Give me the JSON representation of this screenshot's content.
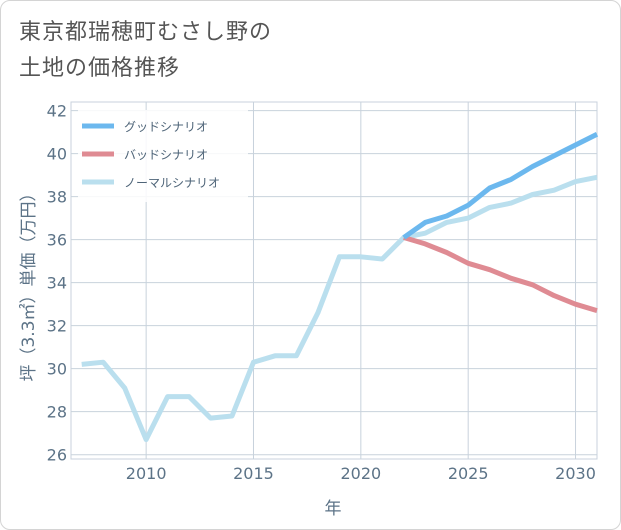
{
  "title_lines": [
    "東京都瑞穂町むさし野の",
    "土地の価格推移"
  ],
  "colors": {
    "good": "#6cb8ee",
    "bad": "#df8b93",
    "normal": "#badfee",
    "grid": "#c8d2dc",
    "axis_text": "#5c7387"
  },
  "chart_data": {
    "type": "line",
    "title": "東京都瑞穂町むさし野の土地の価格推移",
    "xlabel": "年",
    "ylabel": "坪（3.3㎡）単価（万円）",
    "xlim": [
      2006.5,
      2031
    ],
    "ylim": [
      25.8,
      42.4
    ],
    "x_ticks": [
      2010,
      2015,
      2020,
      2025,
      2030
    ],
    "y_ticks": [
      26,
      28,
      30,
      32,
      34,
      36,
      38,
      40,
      42
    ],
    "grid": true,
    "legend_position": "top-left",
    "legend": [
      "グッドシナリオ",
      "バッドシナリオ",
      "ノーマルシナリオ"
    ],
    "series": [
      {
        "name": "グッドシナリオ",
        "color_key": "good",
        "x": [
          2022,
          2023,
          2024,
          2025,
          2026,
          2027,
          2028,
          2029,
          2030,
          2031
        ],
        "y": [
          36.1,
          36.8,
          37.1,
          37.6,
          38.4,
          38.8,
          39.4,
          39.9,
          40.4,
          40.9
        ]
      },
      {
        "name": "バッドシナリオ",
        "color_key": "bad",
        "x": [
          2022,
          2023,
          2024,
          2025,
          2026,
          2027,
          2028,
          2029,
          2030,
          2031
        ],
        "y": [
          36.1,
          35.8,
          35.4,
          34.9,
          34.6,
          34.2,
          33.9,
          33.4,
          33.0,
          32.7
        ]
      },
      {
        "name": "ノーマルシナリオ",
        "color_key": "normal",
        "x": [
          2007,
          2008,
          2009,
          2010,
          2011,
          2012,
          2013,
          2014,
          2015,
          2016,
          2017,
          2018,
          2019,
          2020,
          2021,
          2022,
          2023,
          2024,
          2025,
          2026,
          2027,
          2028,
          2029,
          2030,
          2031
        ],
        "y": [
          30.2,
          30.3,
          29.1,
          26.7,
          28.7,
          28.7,
          27.7,
          27.8,
          30.3,
          30.6,
          30.6,
          32.6,
          35.2,
          35.2,
          35.1,
          36.1,
          36.3,
          36.8,
          37.0,
          37.5,
          37.7,
          38.1,
          38.3,
          38.7,
          38.9
        ]
      }
    ]
  }
}
